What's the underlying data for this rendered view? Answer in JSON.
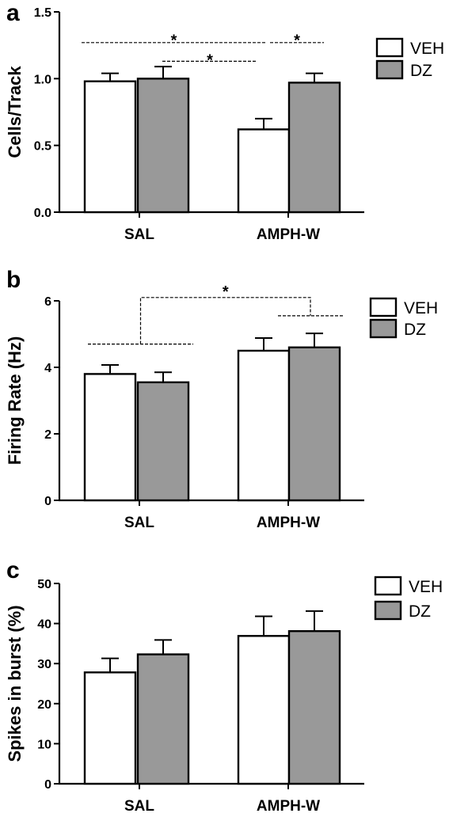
{
  "colors": {
    "veh": "#ffffff",
    "dz": "#999999",
    "stroke": "#000000"
  },
  "chart_data": [
    {
      "panel": "a",
      "type": "bar",
      "ylabel": "Cells/Track",
      "categories": [
        "SAL",
        "AMPH-W"
      ],
      "series": [
        {
          "name": "VEH",
          "values": [
            0.98,
            0.62
          ],
          "errors": [
            0.06,
            0.08
          ]
        },
        {
          "name": "DZ",
          "values": [
            1.0,
            0.97
          ],
          "errors": [
            0.09,
            0.07
          ]
        }
      ],
      "ylim": [
        0,
        1.5
      ],
      "yticks": [
        0.0,
        0.5,
        1.0,
        1.5
      ],
      "ytick_labels": [
        "0.0",
        "0.5",
        "1.0",
        "1.5"
      ],
      "grid": false,
      "legend_position": "top-right",
      "significance": [
        {
          "label": "*",
          "type": "straight",
          "from": [
            "SAL",
            "VEH"
          ],
          "to": [
            "AMPH-W",
            "VEH"
          ],
          "level": 1.27,
          "star_at": 1.32
        },
        {
          "label": "*",
          "type": "straight",
          "from": [
            "SAL",
            "DZ"
          ],
          "to": [
            "AMPH-W",
            "VEH"
          ],
          "level": 1.13,
          "star_at": 1.17
        },
        {
          "label": "*",
          "type": "straight",
          "from": [
            "AMPH-W",
            "VEH"
          ],
          "to": [
            "AMPH-W",
            "DZ"
          ],
          "level": 1.27,
          "star_at": 1.32
        }
      ]
    },
    {
      "panel": "b",
      "type": "bar",
      "ylabel": "Firing Rate (Hz)",
      "categories": [
        "SAL",
        "AMPH-W"
      ],
      "series": [
        {
          "name": "VEH",
          "values": [
            3.8,
            4.5
          ],
          "errors": [
            0.27,
            0.38
          ]
        },
        {
          "name": "DZ",
          "values": [
            3.55,
            4.6
          ],
          "errors": [
            0.3,
            0.42
          ]
        }
      ],
      "ylim": [
        0,
        6
      ],
      "yticks": [
        0,
        2,
        4,
        6
      ],
      "ytick_labels": [
        "0",
        "2",
        "4",
        "6"
      ],
      "grid": false,
      "legend_position": "top-right",
      "significance": [
        {
          "label": "*",
          "type": "group-bracket",
          "groups": [
            "SAL",
            "AMPH-W"
          ],
          "lines": [
            4.7,
            5.55
          ],
          "top": 6.1,
          "star_at": 6.4
        }
      ]
    },
    {
      "panel": "c",
      "type": "bar",
      "ylabel": "Spikes in burst (%)",
      "categories": [
        "SAL",
        "AMPH-W"
      ],
      "series": [
        {
          "name": "VEH",
          "values": [
            27.8,
            36.9
          ],
          "errors": [
            3.5,
            4.9
          ]
        },
        {
          "name": "DZ",
          "values": [
            32.3,
            38.1
          ],
          "errors": [
            3.6,
            5.0
          ]
        }
      ],
      "ylim": [
        0,
        50
      ],
      "yticks": [
        0,
        10,
        20,
        30,
        40,
        50
      ],
      "ytick_labels": [
        "0",
        "10",
        "20",
        "30",
        "40",
        "50"
      ],
      "grid": false,
      "legend_position": "top-right",
      "significance": []
    }
  ]
}
